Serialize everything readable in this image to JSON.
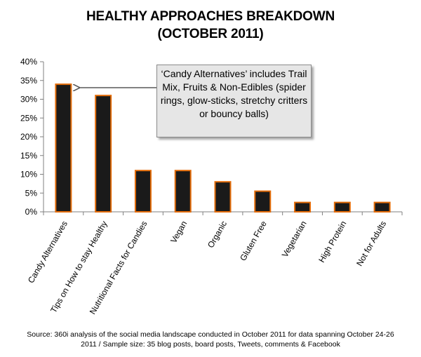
{
  "title_line1": "HEALTHY APPROACHES BREAKDOWN",
  "title_line2": "(OCTOBER 2011)",
  "callout_text": "‘Candy Alternatives’ includes Trail Mix, Fruits & Non-Edibles (spider rings, glow-sticks, stretchy critters or bouncy balls)",
  "source_line1": "Source: 360i analysis of the  social media landscape  conducted in October 2011 for data  spanning October 24-26",
  "source_line2": "2011 / Sample size:  35 blog posts, board posts, Tweets, comments & Facebook",
  "colors": {
    "bar_fill": "#1a1a1a",
    "bar_border": "#e36c09",
    "axis": "#808080",
    "arrow": "#595959"
  },
  "chart_data": {
    "type": "bar",
    "title": "HEALTHY APPROACHES BREAKDOWN (OCTOBER 2011)",
    "categories": [
      "Candy Alternatives",
      "Tips on How to stay Healthy",
      "Nutritional Facts for Candies",
      "Vegan",
      "Organic",
      "Gluten Free",
      "Vegetarian",
      "High Protein",
      "Not for Adults"
    ],
    "values": [
      34,
      31,
      11,
      11,
      8,
      5.5,
      2.5,
      2.5,
      2.5
    ],
    "ylim": [
      0,
      40
    ],
    "yticks": [
      "0%",
      "5%",
      "10%",
      "15%",
      "20%",
      "25%",
      "30%",
      "35%",
      "40%"
    ],
    "grid": false,
    "legend": "none"
  }
}
